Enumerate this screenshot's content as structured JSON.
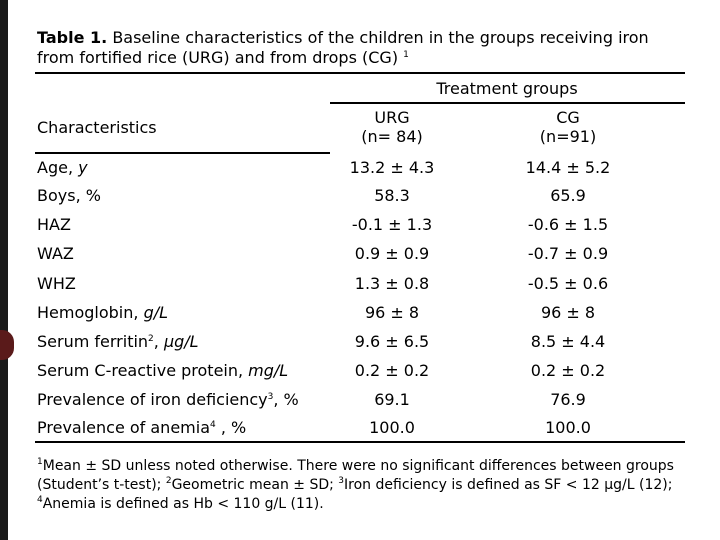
{
  "caption": {
    "label": "Table 1.",
    "text": "Baseline characteristics of the children in the groups receiving iron from fortified rice (URG) and from drops (CG)",
    "note": "1"
  },
  "table": {
    "group_header": "Treatment groups",
    "columns": [
      "Characteristics",
      {
        "name": "URG",
        "n": "(n= 84)"
      },
      {
        "name": "CG",
        "n": "(n=91)"
      }
    ],
    "rows": [
      {
        "label": [
          {
            "text": "Age, "
          },
          {
            "text": "y",
            "style": "italic"
          }
        ],
        "cells": [
          "13.2 ± 4.3",
          "14.4 ± 5.2"
        ]
      },
      {
        "label": [
          {
            "text": "Boys, %"
          }
        ],
        "cells": [
          "58.3",
          "65.9"
        ]
      },
      {
        "label": [
          {
            "text": "HAZ"
          }
        ],
        "cells": [
          "-0.1 ± 1.3",
          "-0.6 ± 1.5"
        ]
      },
      {
        "label": [
          {
            "text": "WAZ"
          }
        ],
        "cells": [
          "0.9 ± 0.9",
          "-0.7 ± 0.9"
        ]
      },
      {
        "label": [
          {
            "text": "WHZ"
          }
        ],
        "cells": [
          "1.3 ± 0.8",
          "-0.5 ± 0.6"
        ]
      },
      {
        "label": [
          {
            "text": "Hemoglobin, "
          },
          {
            "text": "g/L",
            "style": "italic"
          }
        ],
        "cells": [
          "96 ± 8",
          "96 ± 8"
        ]
      },
      {
        "label": [
          {
            "text": "Serum ferritin"
          },
          {
            "text": "2",
            "style": "sup"
          },
          {
            "text": ", "
          },
          {
            "text": "μg/L",
            "style": "italic"
          }
        ],
        "cells": [
          "9.6 ± 6.5",
          "8.5 ± 4.4"
        ]
      },
      {
        "label": [
          {
            "text": "Serum C-reactive protein, "
          },
          {
            "text": "mg/L",
            "style": "italic"
          }
        ],
        "cells": [
          "0.2 ± 0.2",
          "0.2 ± 0.2"
        ]
      },
      {
        "label": [
          {
            "text": "Prevalence of iron deficiency"
          },
          {
            "text": "3",
            "style": "sup"
          },
          {
            "text": ", %"
          }
        ],
        "cells": [
          "69.1",
          "76.9"
        ]
      },
      {
        "label": [
          {
            "text": "Prevalence of anemia"
          },
          {
            "text": "4",
            "style": "sup"
          },
          {
            "text": " , %"
          }
        ],
        "cells": [
          "100.0",
          "100.0"
        ]
      }
    ]
  },
  "footnote": [
    {
      "text": "1",
      "style": "sup"
    },
    {
      "text": "Mean ± SD unless noted otherwise. There were no significant differences between groups (Student’s t-test); "
    },
    {
      "text": "2",
      "style": "sup"
    },
    {
      "text": "Geometric mean ± SD; "
    },
    {
      "text": "3",
      "style": "sup"
    },
    {
      "text": "Iron deficiency is defined as SF < 12 μg/L (12); "
    },
    {
      "text": "4",
      "style": "sup"
    },
    {
      "text": "Anemia is defined as Hb < 110 g/L (11)."
    }
  ]
}
